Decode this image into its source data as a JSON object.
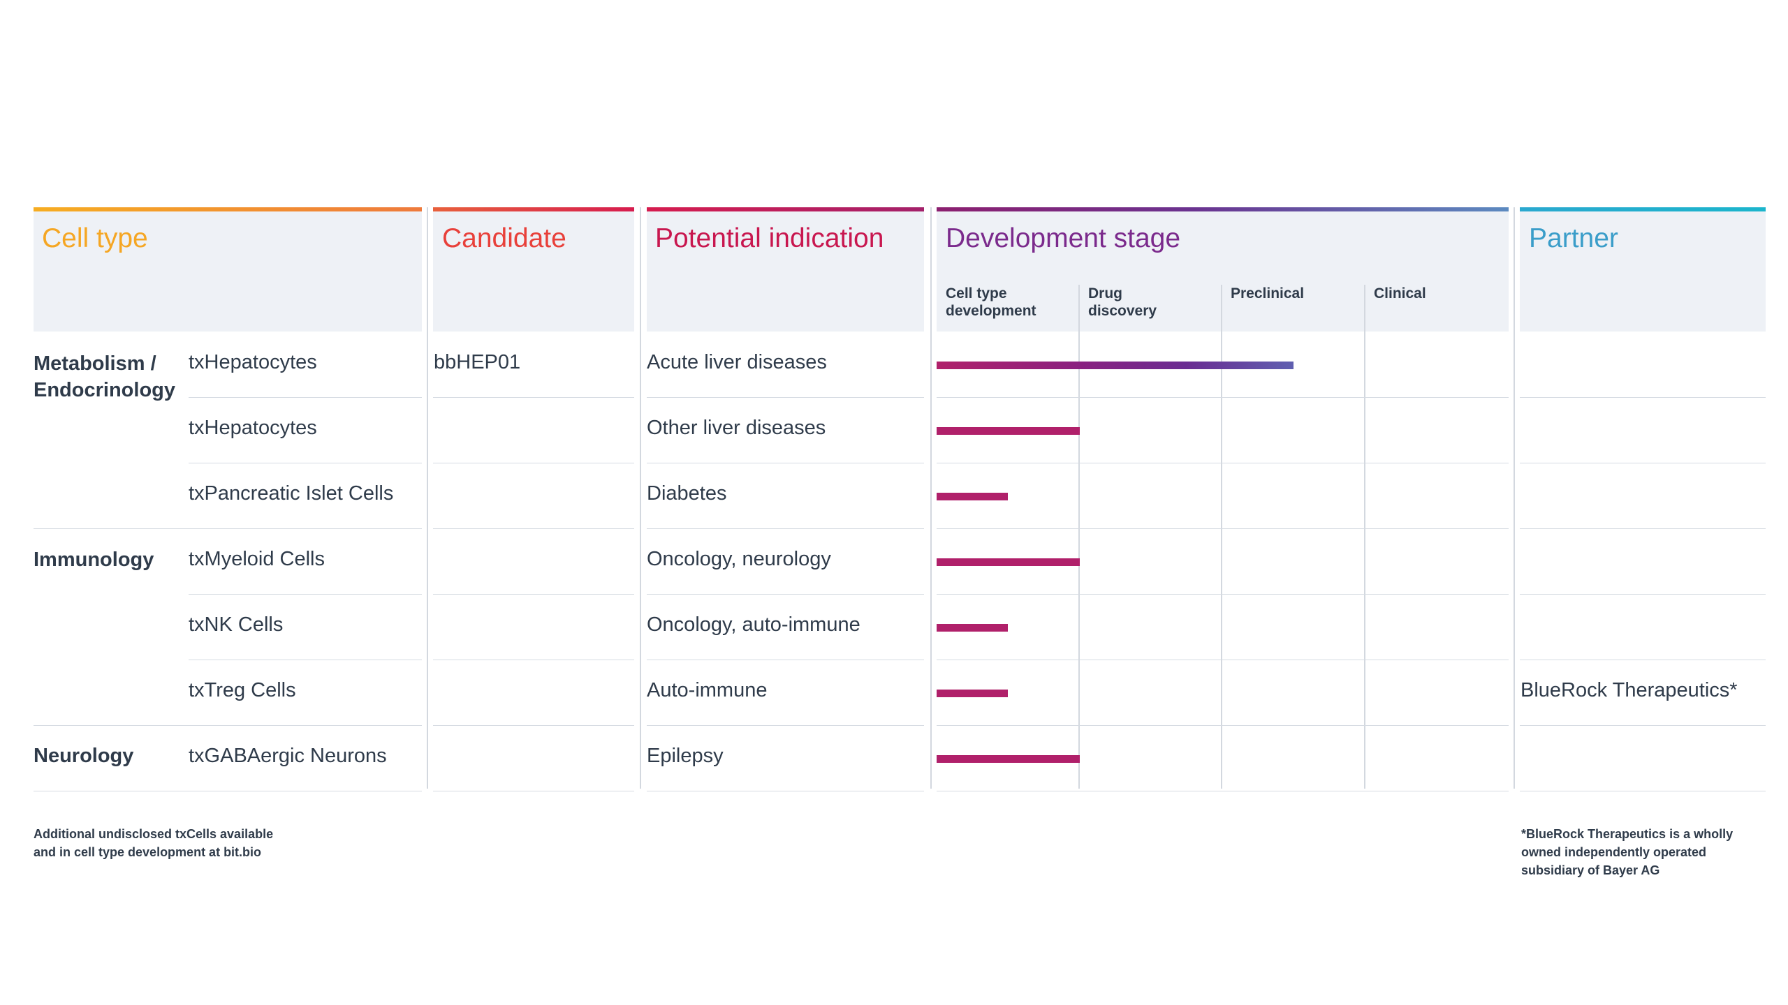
{
  "headers": {
    "cell_type": "Cell type",
    "candidate": "Candidate",
    "potential_indication": "Potential indication",
    "development_stage": "Development stage",
    "partner": "Partner"
  },
  "colors": {
    "cell_type": "#f5a623",
    "candidate": "#e8403a",
    "indication": "#c8174f",
    "development": "#7b2a8c",
    "partner": "#3a9dc9",
    "bar_start": "#b0206a",
    "bar_end": "#5f5fb0"
  },
  "stages": [
    "Cell type\ndevelopment",
    "Drug\ndiscovery",
    "Preclinical",
    "Clinical"
  ],
  "areas": [
    {
      "name": "Metabolism /\nEndocrinology",
      "row": 0
    },
    {
      "name": "Immunology",
      "row": 3
    },
    {
      "name": "Neurology",
      "row": 6
    }
  ],
  "chart_data": {
    "type": "bar",
    "orientation": "horizontal",
    "title": "Development stage",
    "stages": [
      "Cell type development",
      "Drug discovery",
      "Preclinical",
      "Clinical"
    ],
    "rows": [
      {
        "cell_type": "txHepatocytes",
        "candidate": "bbHEP01",
        "indication": "Acute liver diseases",
        "partner": "",
        "progress_stages": 2.5
      },
      {
        "cell_type": "txHepatocytes",
        "candidate": "",
        "indication": "Other liver diseases",
        "partner": "",
        "progress_stages": 1.0
      },
      {
        "cell_type": "txPancreatic Islet Cells",
        "candidate": "",
        "indication": "Diabetes",
        "partner": "",
        "progress_stages": 0.5
      },
      {
        "cell_type": "txMyeloid Cells",
        "candidate": "",
        "indication": "Oncology, neurology",
        "partner": "",
        "progress_stages": 1.0
      },
      {
        "cell_type": "txNK Cells",
        "candidate": "",
        "indication": "Oncology, auto-immune",
        "partner": "",
        "progress_stages": 0.5
      },
      {
        "cell_type": "txTreg Cells",
        "candidate": "",
        "indication": "Auto-immune",
        "partner": "BlueRock Therapeutics*",
        "progress_stages": 0.5
      },
      {
        "cell_type": "txGABAergic Neurons",
        "candidate": "",
        "indication": "Epilepsy",
        "partner": "",
        "progress_stages": 1.0
      }
    ],
    "xlim": [
      0,
      4
    ]
  },
  "footnotes": {
    "left": "Additional undisclosed txCells available\nand in cell type development at bit.bio",
    "right": "*BlueRock Therapeutics is a wholly\nowned independently operated\nsubsidiary of Bayer AG"
  }
}
